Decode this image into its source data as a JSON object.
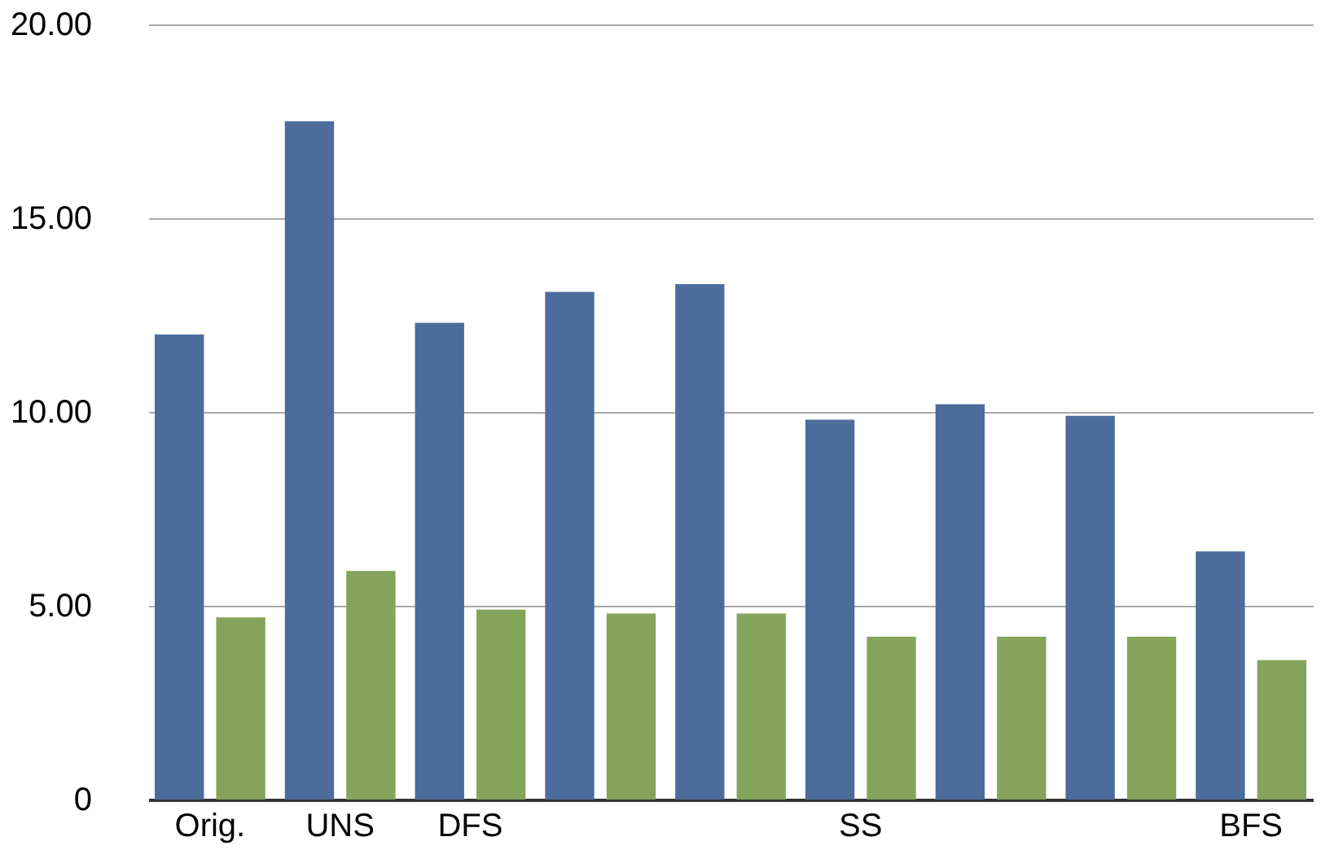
{
  "chart_data": {
    "type": "bar",
    "categories": [
      "Orig.",
      "UNS",
      "DFS",
      null,
      null,
      "SS",
      null,
      null,
      "BFS"
    ],
    "series": [
      {
        "color": "#4c6c9c",
        "values": [
          12.0,
          17.5,
          12.3,
          13.1,
          13.3,
          9.8,
          10.2,
          9.9,
          6.4
        ]
      },
      {
        "color": "#84a45c",
        "values": [
          4.7,
          5.9,
          4.9,
          4.8,
          4.8,
          4.2,
          4.2,
          4.2,
          3.6
        ]
      }
    ],
    "ylim": [
      0,
      20
    ],
    "yticks": [
      {
        "value": 0,
        "label": "0"
      },
      {
        "value": 5,
        "label": "5.00"
      },
      {
        "value": 10,
        "label": "10.00"
      },
      {
        "value": 15,
        "label": "15.00"
      },
      {
        "value": 20,
        "label": "20.00"
      }
    ],
    "grid": "y",
    "legend": false
  }
}
